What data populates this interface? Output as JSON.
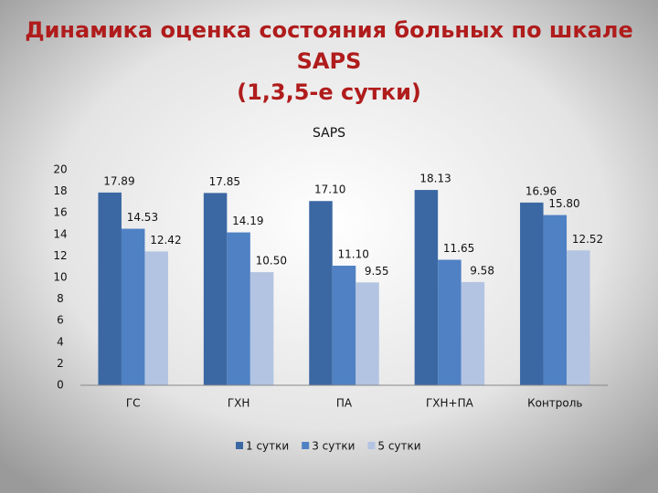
{
  "chart_data": {
    "type": "bar",
    "title": [
      "Динамика оценка состояния больных по шкале",
      "SAPS",
      "(1,3,5-е сутки)"
    ],
    "subtitle": "SAPS",
    "categories": [
      "ГС",
      "ГХН",
      "ПА",
      "ГХН+ПА",
      "Контроль"
    ],
    "series": [
      {
        "name": "1 сутки",
        "color": "#3b68a3",
        "values": [
          17.89,
          17.85,
          17.1,
          18.13,
          16.96
        ],
        "value_labels": [
          "17.89",
          "17.85",
          "17.10",
          "18.13",
          "16.96"
        ]
      },
      {
        "name": "3 сутки",
        "color": "#4f81c4",
        "values": [
          14.53,
          14.19,
          11.1,
          11.65,
          15.8
        ],
        "value_labels": [
          "14.53",
          "14.19",
          "11.10",
          "11.65",
          "15.80"
        ]
      },
      {
        "name": "5 сутки",
        "color": "#b3c4e2",
        "values": [
          12.42,
          10.5,
          9.55,
          9.58,
          12.52
        ],
        "value_labels": [
          "12.42",
          "10.50",
          "9.55",
          "9.58",
          "12.52"
        ]
      }
    ],
    "ylim": [
      0,
      20
    ],
    "yticks": [
      0,
      2,
      4,
      6,
      8,
      10,
      12,
      14,
      16,
      18,
      20
    ],
    "grid": false,
    "legend": "bottom"
  }
}
